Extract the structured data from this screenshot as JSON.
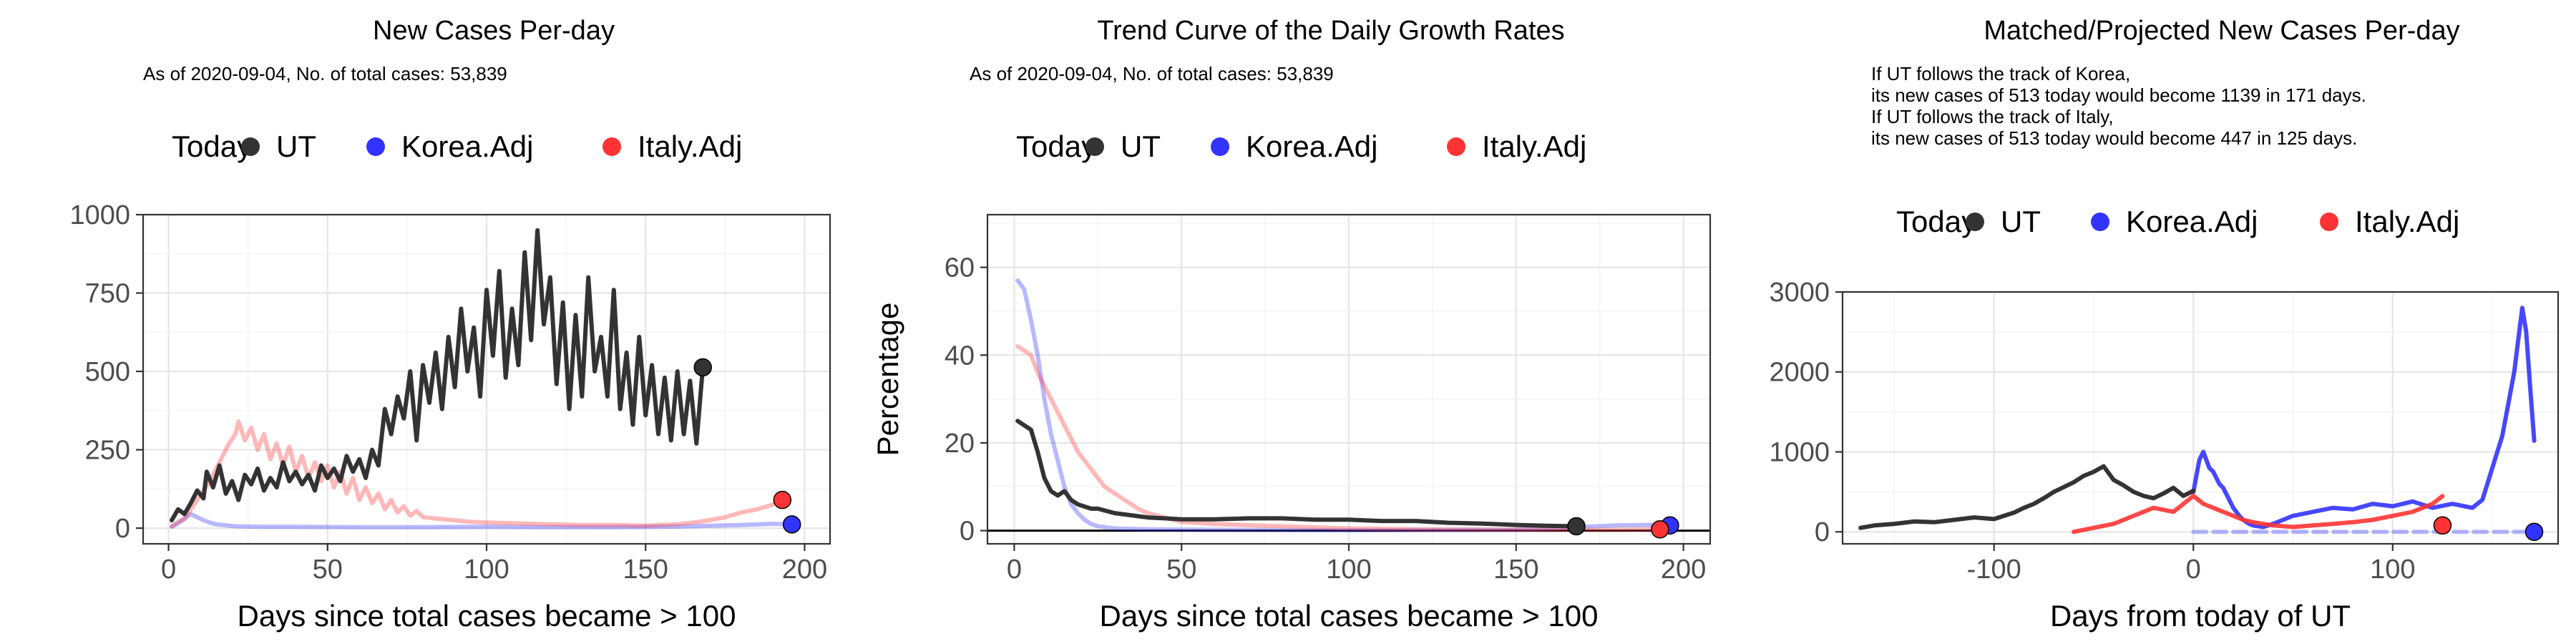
{
  "colors": {
    "UT": "#333333",
    "Korea.Adj": "#3333ff",
    "Italy.Adj": "#ff3333",
    "Today": "#000000"
  },
  "chart_data": [
    {
      "type": "line",
      "title": "New Cases Per-day",
      "subtitle": [
        "As of 2020-09-04, No. of total cases: 53,839"
      ],
      "xlabel": "Days since total cases became > 100",
      "ylabel": "",
      "xlim": [
        -8,
        208
      ],
      "ylim": [
        -50,
        1000
      ],
      "xticks": [
        0,
        50,
        100,
        150,
        200
      ],
      "yticks": [
        0,
        250,
        500,
        750,
        1000
      ],
      "grid": true,
      "legend": {
        "position": "top",
        "title": "Today",
        "entries": [
          "UT",
          "Korea.Adj",
          "Italy.Adj"
        ]
      },
      "series": [
        {
          "name": "UT",
          "x": [
            1,
            3,
            5,
            7,
            9,
            11,
            12,
            14,
            16,
            18,
            20,
            22,
            24,
            26,
            28,
            30,
            32,
            34,
            36,
            38,
            40,
            42,
            44,
            46,
            48,
            50,
            52,
            54,
            56,
            58,
            60,
            62,
            64,
            66,
            68,
            70,
            72,
            74,
            76,
            78,
            80,
            82,
            84,
            86,
            88,
            90,
            92,
            94,
            96,
            98,
            100,
            102,
            104,
            106,
            108,
            110,
            112,
            114,
            116,
            118,
            120,
            122,
            124,
            126,
            128,
            130,
            132,
            134,
            136,
            138,
            140,
            142,
            144,
            146,
            148,
            150,
            152,
            154,
            156,
            158,
            160,
            162,
            164,
            166,
            168
          ],
          "y": [
            25,
            60,
            45,
            80,
            120,
            95,
            180,
            130,
            200,
            110,
            150,
            90,
            170,
            140,
            190,
            120,
            160,
            130,
            210,
            150,
            180,
            140,
            170,
            120,
            200,
            160,
            190,
            150,
            230,
            180,
            220,
            160,
            250,
            200,
            380,
            300,
            420,
            350,
            500,
            280,
            520,
            400,
            560,
            380,
            610,
            450,
            700,
            500,
            640,
            420,
            760,
            550,
            820,
            480,
            700,
            520,
            880,
            600,
            950,
            650,
            800,
            460,
            720,
            380,
            680,
            420,
            800,
            500,
            610,
            420,
            760,
            380,
            560,
            330,
            610,
            360,
            520,
            300,
            480,
            280,
            500,
            300,
            470,
            270,
            513
          ]
        },
        {
          "name": "Korea.Adj",
          "x": [
            1,
            3,
            5,
            7,
            9,
            11,
            13,
            15,
            17,
            19,
            21,
            25,
            30,
            40,
            60,
            80,
            100,
            120,
            140,
            160,
            180,
            190,
            195
          ],
          "y": [
            5,
            15,
            30,
            45,
            35,
            25,
            18,
            12,
            10,
            8,
            6,
            5,
            4,
            4,
            3,
            3,
            4,
            3,
            3,
            5,
            10,
            14,
            12
          ]
        },
        {
          "name": "Italy.Adj",
          "x": [
            1,
            3,
            5,
            7,
            9,
            11,
            13,
            15,
            17,
            19,
            21,
            22,
            24,
            26,
            28,
            30,
            32,
            34,
            36,
            38,
            40,
            42,
            44,
            46,
            48,
            50,
            52,
            54,
            56,
            58,
            60,
            62,
            64,
            66,
            68,
            70,
            72,
            74,
            76,
            78,
            80,
            85,
            90,
            95,
            100,
            110,
            120,
            130,
            140,
            150,
            160,
            165,
            170,
            175,
            180,
            185,
            190,
            193
          ],
          "y": [
            5,
            20,
            30,
            60,
            90,
            120,
            150,
            190,
            230,
            270,
            300,
            340,
            280,
            320,
            250,
            300,
            220,
            270,
            200,
            260,
            180,
            230,
            160,
            210,
            150,
            200,
            130,
            180,
            110,
            160,
            90,
            130,
            80,
            110,
            60,
            90,
            50,
            70,
            40,
            55,
            35,
            30,
            25,
            20,
            18,
            15,
            12,
            10,
            10,
            8,
            12,
            18,
            25,
            35,
            50,
            60,
            75,
            90
          ]
        }
      ],
      "today": [
        {
          "name": "UT",
          "x": 168,
          "y": 513
        },
        {
          "name": "Korea.Adj",
          "x": 196,
          "y": 12
        },
        {
          "name": "Italy.Adj",
          "x": 193,
          "y": 90
        }
      ]
    },
    {
      "type": "line",
      "title": "Trend Curve of the Daily Growth Rates",
      "subtitle": [
        "As of 2020-09-04, No. of total cases: 53,839"
      ],
      "xlabel": "Days since total cases became > 100",
      "ylabel": "Percentage",
      "xlim": [
        -8,
        208
      ],
      "ylim": [
        -3,
        72
      ],
      "xticks": [
        0,
        50,
        100,
        150,
        200
      ],
      "yticks": [
        0,
        20,
        40,
        60
      ],
      "grid": true,
      "hline": 0,
      "legend": {
        "position": "top",
        "title": "Today",
        "entries": [
          "UT",
          "Korea.Adj",
          "Italy.Adj"
        ]
      },
      "series": [
        {
          "name": "UT",
          "x": [
            1,
            3,
            5,
            7,
            9,
            11,
            13,
            15,
            17,
            19,
            21,
            23,
            25,
            30,
            35,
            40,
            45,
            50,
            60,
            70,
            80,
            90,
            100,
            110,
            120,
            130,
            140,
            150,
            160,
            168
          ],
          "y": [
            25,
            24,
            23,
            18,
            12,
            9,
            8,
            9,
            7,
            6,
            5.5,
            5,
            5,
            4,
            3.5,
            3,
            2.8,
            2.6,
            2.6,
            2.8,
            2.8,
            2.5,
            2.5,
            2.2,
            2.2,
            1.8,
            1.6,
            1.3,
            1.1,
            1.0
          ]
        },
        {
          "name": "Korea.Adj",
          "x": [
            1,
            3,
            5,
            7,
            9,
            11,
            13,
            15,
            17,
            19,
            21,
            23,
            25,
            30,
            40,
            60,
            100,
            150,
            180,
            190,
            196
          ],
          "y": [
            57,
            55,
            48,
            40,
            30,
            22,
            16,
            10,
            6,
            4,
            2.5,
            1.5,
            1,
            0.5,
            0.3,
            0.2,
            0.1,
            0.2,
            1.2,
            1.3,
            1.2
          ]
        },
        {
          "name": "Italy.Adj",
          "x": [
            1,
            3,
            5,
            7,
            9,
            11,
            13,
            15,
            17,
            19,
            21,
            23,
            25,
            27,
            29,
            31,
            33,
            35,
            37,
            40,
            45,
            50,
            60,
            80,
            100,
            120,
            150,
            180,
            190,
            193
          ],
          "y": [
            42,
            41,
            40,
            36,
            33,
            30,
            27,
            24,
            21,
            18,
            16,
            14,
            12,
            10,
            9,
            8,
            7,
            6,
            5,
            4,
            3,
            2,
            1.5,
            1,
            0.5,
            0.3,
            0.2,
            0.2,
            0.3,
            0.3
          ]
        }
      ],
      "today": [
        {
          "name": "UT",
          "x": 168,
          "y": 1.0
        },
        {
          "name": "Korea.Adj",
          "x": 196,
          "y": 1.2
        },
        {
          "name": "Italy.Adj",
          "x": 193,
          "y": 0.3
        }
      ]
    },
    {
      "type": "line",
      "title": "Matched/Projected New Cases Per-day",
      "subtitle": [
        "If UT follows the track of Korea,",
        "its new cases of 513 today would become 1139 in 171 days.",
        "If UT follows the track of Italy,",
        "its new cases of 513 today would become 447 in 125 days."
      ],
      "xlabel": "Days from today of UT",
      "ylabel": "",
      "xlim": [
        -176,
        183
      ],
      "ylim": [
        -150,
        3000
      ],
      "xticks": [
        -100,
        0,
        100
      ],
      "yticks": [
        0,
        1000,
        2000,
        3000
      ],
      "grid": true,
      "legend": {
        "position": "top",
        "title": "Today",
        "entries": [
          "UT",
          "Korea.Adj",
          "Italy.Adj"
        ]
      },
      "series": [
        {
          "name": "UT",
          "x": [
            -167,
            -160,
            -150,
            -140,
            -130,
            -120,
            -110,
            -100,
            -95,
            -90,
            -85,
            -80,
            -75,
            -70,
            -65,
            -60,
            -55,
            -50,
            -45,
            -40,
            -35,
            -30,
            -25,
            -20,
            -15,
            -10,
            -5,
            0
          ],
          "y": [
            50,
            80,
            100,
            130,
            120,
            150,
            180,
            160,
            200,
            240,
            300,
            350,
            420,
            500,
            560,
            620,
            700,
            750,
            820,
            650,
            580,
            500,
            450,
            420,
            480,
            550,
            450,
            513
          ]
        },
        {
          "name": "Korea.Adj",
          "x": [
            0,
            3,
            5,
            8,
            10,
            13,
            15,
            18,
            20,
            23,
            25,
            28,
            30,
            35,
            40,
            45,
            50,
            60,
            70,
            80,
            90,
            100,
            110,
            120,
            130,
            140,
            145,
            150,
            155,
            158,
            161,
            163,
            165,
            167,
            169,
            171
          ],
          "y": [
            500,
            900,
            1000,
            800,
            750,
            600,
            550,
            400,
            300,
            200,
            150,
            100,
            80,
            60,
            100,
            150,
            200,
            250,
            300,
            280,
            350,
            320,
            380,
            300,
            350,
            300,
            400,
            800,
            1200,
            1600,
            2000,
            2400,
            2800,
            2500,
            1800,
            1139
          ]
        },
        {
          "name": "Korea.Adj",
          "dashed": true,
          "x": [
            0,
            10,
            20,
            30,
            50,
            80,
            100,
            120,
            140,
            160,
            171
          ],
          "y": [
            0,
            0,
            0,
            0,
            0,
            0,
            0,
            0,
            0,
            0,
            0
          ]
        },
        {
          "name": "Italy.Adj",
          "x": [
            -60,
            -50,
            -40,
            -30,
            -20,
            -10,
            0,
            5,
            10,
            15,
            20,
            25,
            30,
            35,
            40,
            50,
            60,
            70,
            80,
            90,
            100,
            110,
            115,
            120,
            125
          ],
          "y": [
            0,
            50,
            100,
            200,
            300,
            250,
            450,
            350,
            300,
            250,
            200,
            150,
            120,
            100,
            80,
            60,
            80,
            100,
            120,
            150,
            200,
            250,
            300,
            350,
            447
          ]
        }
      ],
      "today": [
        {
          "name": "Korea.Adj",
          "x": 171,
          "y": 0
        },
        {
          "name": "Italy.Adj",
          "x": 125,
          "y": 80
        }
      ]
    }
  ]
}
